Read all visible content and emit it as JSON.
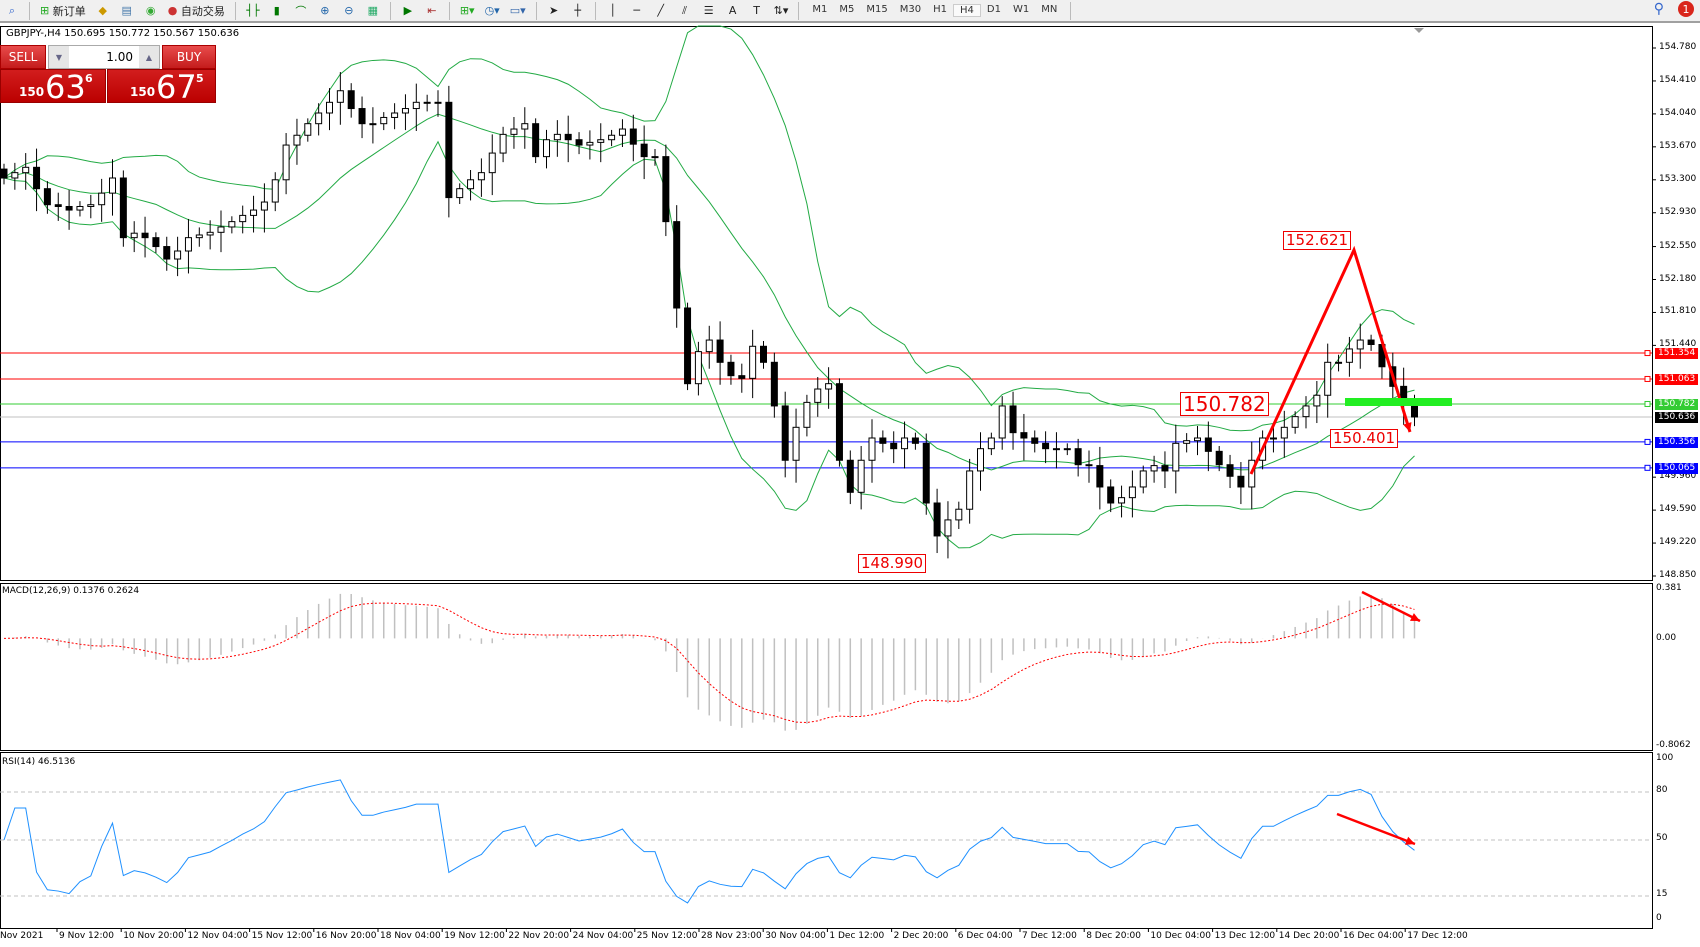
{
  "toolbar": {
    "new_order": "新订单",
    "auto_trading": "自动交易",
    "icons": [
      "zoom-icon",
      "new-order-icon",
      "history-icon",
      "terminal-icon",
      "signals-icon",
      "auto-trading-icon",
      "bar-chart-icon",
      "candlestick-icon",
      "line-chart-icon",
      "zoom-in-icon",
      "zoom-out-icon",
      "tile-windows-icon",
      "auto-scroll-icon",
      "chart-shift-icon",
      "indicators-icon",
      "periods-icon",
      "templates-icon",
      "cursor-icon",
      "crosshair-icon",
      "vertical-line-icon",
      "horizontal-line-icon",
      "trendline-icon",
      "equidistant-channel-icon",
      "fibonacci-icon",
      "text-icon",
      "text-label-icon",
      "arrows-icon"
    ],
    "timeframes": [
      "M1",
      "M5",
      "M15",
      "M30",
      "H1",
      "H4",
      "D1",
      "W1",
      "MN"
    ],
    "active_timeframe": "H4",
    "notification_count": "1"
  },
  "chart": {
    "symbol_info": "GBPJPY-,H4  150.695 150.772 150.567 150.636",
    "one_click": {
      "sell": "SELL",
      "buy": "BUY",
      "lot": "1.00",
      "sell_big": "150",
      "sell_pips": "63",
      "sell_point": "6",
      "buy_big": "150",
      "buy_pips": "67",
      "buy_point": "5"
    },
    "price_axis": [
      "154.780",
      "154.410",
      "154.040",
      "153.670",
      "153.300",
      "152.930",
      "152.550",
      "152.180",
      "151.810",
      "151.440",
      "149.960",
      "149.590",
      "149.220",
      "148.850"
    ],
    "price_lines": [
      {
        "value": "151.354",
        "color": "#ff0000"
      },
      {
        "value": "151.063",
        "color": "#ff0000"
      },
      {
        "value": "150.782",
        "color": "#33cc33"
      },
      {
        "value": "150.636",
        "color": "#000000",
        "line": "#c0c0c0"
      },
      {
        "value": "150.356",
        "color": "#0000ff"
      },
      {
        "value": "150.065",
        "color": "#0000ff"
      }
    ],
    "annotations": {
      "high": "152.621",
      "mid": "150.782",
      "retest": "150.401",
      "low": "148.990"
    },
    "time_axis": [
      "Nov 2021",
      "9 Nov 12:00",
      "10 Nov 20:00",
      "12 Nov 04:00",
      "15 Nov 12:00",
      "16 Nov 20:00",
      "18 Nov 04:00",
      "19 Nov 12:00",
      "22 Nov 20:00",
      "24 Nov 04:00",
      "25 Nov 12:00",
      "28 Nov 23:00",
      "30 Nov 04:00",
      "1 Dec 12:00",
      "2 Dec 20:00",
      "6 Dec 04:00",
      "7 Dec 12:00",
      "8 Dec 20:00",
      "10 Dec 04:00",
      "13 Dec 12:00",
      "14 Dec 20:00",
      "16 Dec 04:00",
      "17 Dec 12:00"
    ],
    "band_color": "#22aa44"
  },
  "macd": {
    "label": "MACD(12,26,9) 0.1376 0.2624",
    "axis": [
      "0.381",
      "0.00",
      "-0.8062"
    ],
    "signal_color": "#ff0000",
    "hist_color": "#c0c0c0"
  },
  "rsi": {
    "label": "RSI(14) 46.5136",
    "axis": [
      "100",
      "80",
      "50",
      "15",
      "0"
    ],
    "color": "#1e90ff"
  },
  "chart_data": {
    "type": "candlestick",
    "symbol": "GBPJPY",
    "timeframe": "H4",
    "ylim": [
      148.85,
      154.78
    ],
    "close": [
      153.32,
      153.38,
      153.44,
      153.2,
      153.02,
      153.0,
      152.96,
      153.0,
      153.02,
      153.15,
      153.32,
      152.65,
      152.7,
      152.65,
      152.55,
      152.41,
      152.5,
      152.65,
      152.68,
      152.71,
      152.77,
      152.83,
      152.9,
      152.96,
      153.05,
      153.3,
      153.69,
      153.8,
      153.93,
      154.05,
      154.17,
      154.3,
      154.1,
      153.93,
      153.93,
      154.0,
      154.05,
      154.1,
      154.17,
      154.17,
      154.17,
      153.1,
      153.2,
      153.3,
      153.38,
      153.6,
      153.81,
      153.87,
      153.93,
      153.56,
      153.75,
      153.81,
      153.75,
      153.69,
      153.72,
      153.75,
      153.8,
      153.87,
      153.7,
      153.56,
      153.56,
      152.83,
      151.86,
      151.01,
      151.37,
      151.5,
      151.25,
      151.1,
      151.07,
      151.43,
      151.25,
      150.76,
      150.15,
      150.52,
      150.8,
      150.95,
      151.01,
      150.15,
      149.79,
      150.15,
      150.4,
      150.34,
      150.28,
      150.4,
      150.34,
      149.67,
      149.3,
      149.48,
      149.6,
      150.03,
      150.28,
      150.4,
      150.76,
      150.46,
      150.4,
      150.34,
      150.28,
      150.28,
      150.28,
      150.1,
      150.09,
      149.85,
      149.67,
      149.73,
      149.85,
      150.03,
      150.09,
      150.03,
      150.34,
      150.37,
      150.4,
      150.25,
      150.1,
      149.97,
      149.85,
      150.15,
      150.4,
      150.4,
      150.52,
      150.64,
      150.76,
      150.88,
      151.25,
      151.25,
      151.4,
      151.5,
      151.45,
      151.2,
      150.98,
      150.8,
      150.636
    ]
  }
}
